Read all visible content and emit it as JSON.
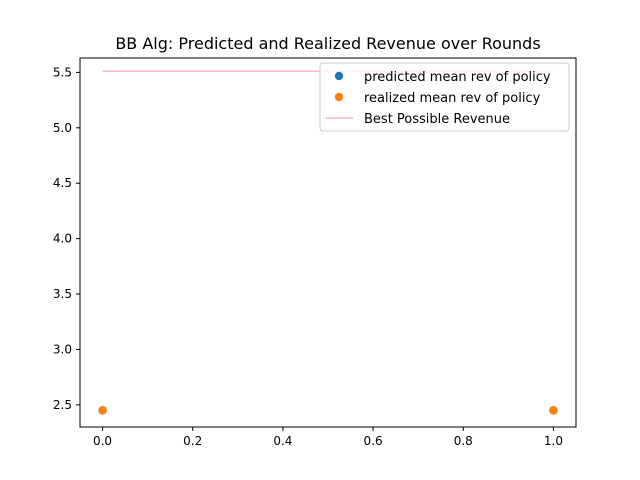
{
  "chart_data": {
    "type": "scatter",
    "title": "BB Alg: Predicted and Realized Revenue over Rounds",
    "xlabel": "",
    "ylabel": "",
    "xlim": [
      -0.05,
      1.05
    ],
    "ylim": [
      2.3,
      5.63
    ],
    "xticks": [
      0.0,
      0.2,
      0.4,
      0.6,
      0.8,
      1.0
    ],
    "xtick_labels": [
      "0.0",
      "0.2",
      "0.4",
      "0.6",
      "0.8",
      "1.0"
    ],
    "yticks": [
      2.5,
      3.0,
      3.5,
      4.0,
      4.5,
      5.0,
      5.5
    ],
    "ytick_labels": [
      "2.5",
      "3.0",
      "3.5",
      "4.0",
      "4.5",
      "5.0",
      "5.5"
    ],
    "grid": false,
    "legend_position": "top-right",
    "series": [
      {
        "name": "predicted mean rev of policy",
        "kind": "scatter",
        "color": "#1f77b4",
        "x": [
          0,
          1
        ],
        "y": [
          2.45,
          2.45
        ]
      },
      {
        "name": "realized mean rev of policy",
        "kind": "scatter",
        "color": "#ff7f0e",
        "x": [
          0,
          1
        ],
        "y": [
          2.45,
          2.45
        ]
      },
      {
        "name": "Best Possible Revenue",
        "kind": "line",
        "color": "#f7b6d2",
        "x": [
          0,
          1
        ],
        "y": [
          5.51,
          5.51
        ]
      }
    ]
  }
}
